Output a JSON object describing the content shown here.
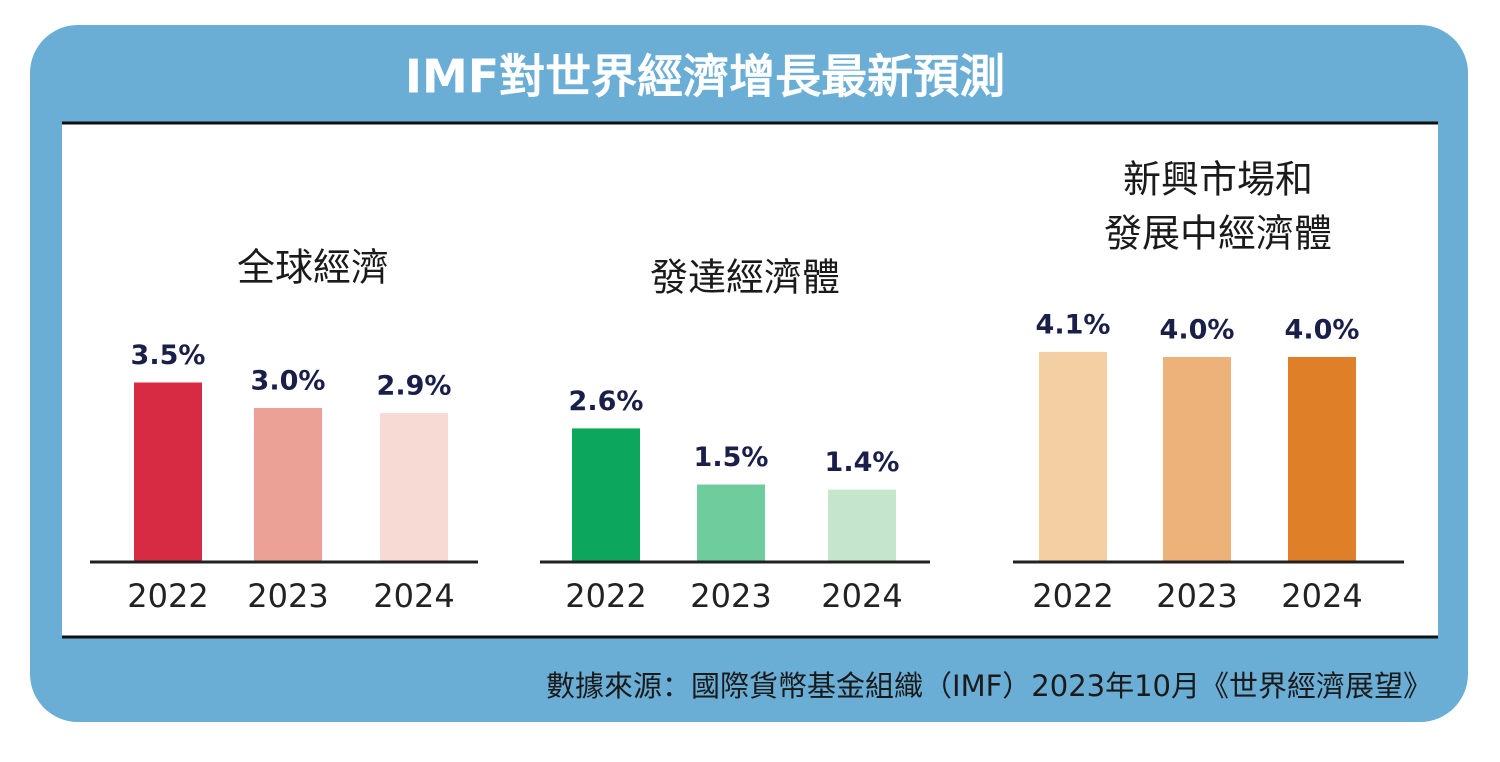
{
  "title": "IMF對世界經濟增長最新預測",
  "source": "數據來源：國際貨幣基金組織（IMF）2023年10月《世界經濟展望》",
  "chart_data": [
    {
      "type": "bar",
      "title": [
        "全球經濟"
      ],
      "categories": [
        "2022",
        "2023",
        "2024"
      ],
      "values": [
        3.5,
        3.0,
        2.9
      ],
      "value_labels": [
        "3.5%",
        "3.0%",
        "2.9%"
      ],
      "colors": [
        "#d72b44",
        "#eba196",
        "#f8dad5"
      ]
    },
    {
      "type": "bar",
      "title": [
        "發達經濟體"
      ],
      "categories": [
        "2022",
        "2023",
        "2024"
      ],
      "values": [
        2.6,
        1.5,
        1.4
      ],
      "value_labels": [
        "2.6%",
        "1.5%",
        "1.4%"
      ],
      "colors": [
        "#0ca75c",
        "#6fcc9c",
        "#c5e6cc"
      ]
    },
    {
      "type": "bar",
      "title": [
        "新興市場和",
        "發展中經濟體"
      ],
      "categories": [
        "2022",
        "2023",
        "2024"
      ],
      "values": [
        4.1,
        4.0,
        4.0
      ],
      "value_labels": [
        "4.1%",
        "4.0%",
        "4.0%"
      ],
      "colors": [
        "#f5cfa4",
        "#edb279",
        "#df7f27"
      ]
    }
  ]
}
